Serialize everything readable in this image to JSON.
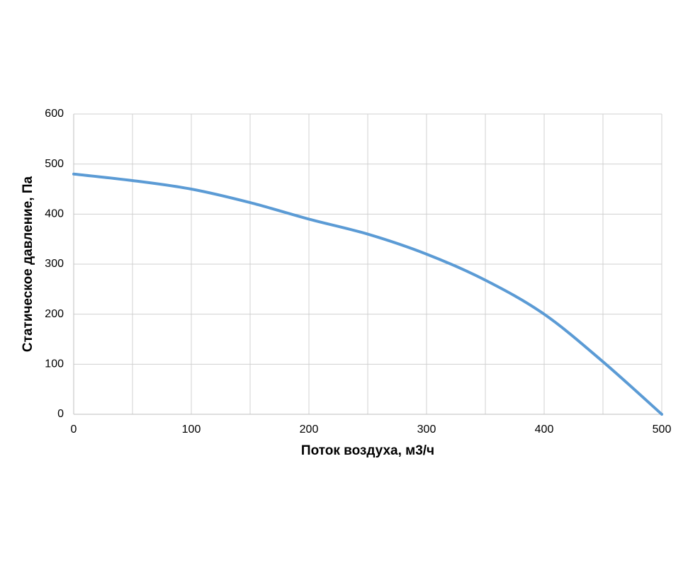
{
  "chart_data": {
    "type": "line",
    "x_label": "Поток воздуха, м3/ч",
    "y_label": "Статическое давление, Па",
    "x": [
      0,
      50,
      100,
      150,
      200,
      250,
      300,
      350,
      400,
      450,
      500
    ],
    "series": [
      {
        "color": "#5b9bd5",
        "values": [
          480,
          467,
          450,
          423,
          390,
          360,
          320,
          268,
          200,
          105,
          0
        ]
      }
    ],
    "xlim": [
      0,
      500
    ],
    "xticks": [
      0,
      100,
      200,
      300,
      400,
      500
    ],
    "xminorticks": [
      50,
      150,
      250,
      350,
      450
    ],
    "ylim": [
      0,
      600
    ],
    "yticks": [
      0,
      100,
      200,
      300,
      400,
      500,
      600
    ],
    "grid": true
  }
}
